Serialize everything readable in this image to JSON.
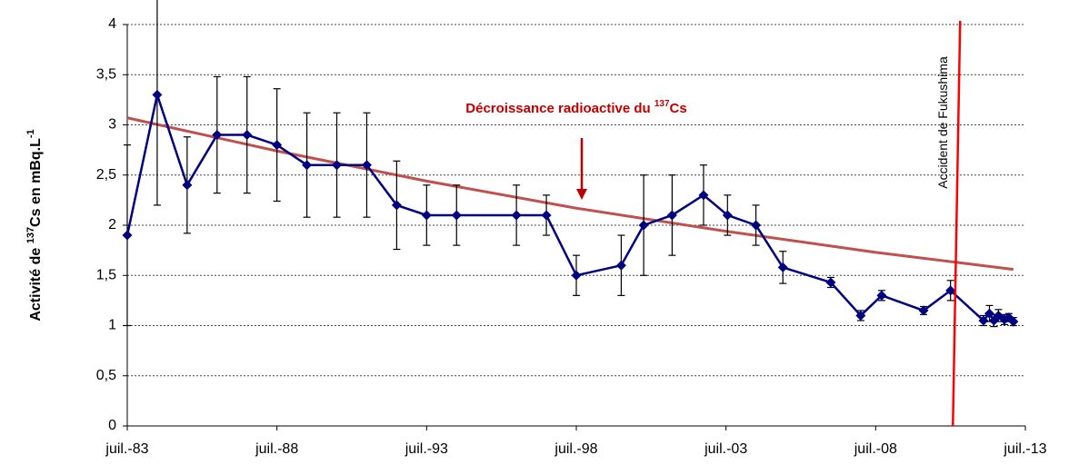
{
  "chart_data": {
    "type": "line",
    "y_label": {
      "pre": "Activité de ",
      "sup": "137",
      "mid": "Cs en mBq.L",
      "sup2": "-1"
    },
    "annotation": {
      "pre": "Décroissance radioactive du ",
      "sup": "137",
      "post": "Cs",
      "x": 1998.5
    },
    "event": {
      "text": "Accident de Fukushima",
      "x": 2011.2,
      "color": "#ff0000"
    },
    "xlim": [
      1983.5,
      2013.5
    ],
    "xticks": [
      {
        "value": 1983.5,
        "label": "juil.-83"
      },
      {
        "value": 1988.5,
        "label": "juil.-88"
      },
      {
        "value": 1993.5,
        "label": "juil.-93"
      },
      {
        "value": 1998.5,
        "label": "juil.-98"
      },
      {
        "value": 2003.5,
        "label": "juil.-03"
      },
      {
        "value": 2008.5,
        "label": "juil.-08"
      },
      {
        "value": 2013.5,
        "label": "juil.-13"
      }
    ],
    "ylim": [
      0,
      4
    ],
    "yticks": [
      0,
      {
        "value": 0.5,
        "label": "0,5"
      },
      1,
      {
        "value": 1.5,
        "label": "1,5"
      },
      2,
      {
        "value": 2.5,
        "label": "2,5"
      },
      3,
      {
        "value": 3.5,
        "label": "3,5"
      },
      4
    ],
    "grid": true,
    "x": [
      1983.5,
      1984.5,
      1985.5,
      1986.5,
      1987.5,
      1988.5,
      1989.5,
      1990.5,
      1991.5,
      1992.5,
      1993.5,
      1994.5,
      1996.5,
      1997.5,
      1998.5,
      2000.0,
      2000.75,
      2001.7,
      2002.75,
      2003.55,
      2004.5,
      2005.4,
      2007.0,
      2008.0,
      2008.7,
      2010.1,
      2011.0,
      2012.1,
      2012.3,
      2012.45,
      2012.6,
      2012.8,
      2012.95,
      2013.1
    ],
    "series": [
      {
        "color": "#000080",
        "values": [
          1.9,
          3.3,
          2.4,
          2.9,
          2.9,
          2.8,
          2.6,
          2.6,
          2.6,
          2.2,
          2.1,
          2.1,
          2.1,
          2.1,
          1.5,
          1.6,
          2.0,
          2.1,
          2.3,
          2.1,
          2.0,
          1.58,
          1.43,
          1.1,
          1.3,
          1.15,
          1.35,
          1.05,
          1.12,
          1.05,
          1.1,
          1.06,
          1.08,
          1.04
        ],
        "errors": [
          0.9,
          1.1,
          0.48,
          0.58,
          0.58,
          0.56,
          0.52,
          0.52,
          0.52,
          0.44,
          0.3,
          0.3,
          0.3,
          0.2,
          0.2,
          0.3,
          0.5,
          0.4,
          0.3,
          0.2,
          0.2,
          0.16,
          0.05,
          0.05,
          0.05,
          0.04,
          0.1,
          0.05,
          0.08,
          0.06,
          0.06,
          0.05,
          0.04,
          0.04
        ]
      },
      {
        "color": "#c0504d",
        "x": [
          1983.5,
          1988.5,
          1993.5,
          1998.5,
          2003.5,
          2008.5,
          2013.1
        ],
        "values": [
          3.07,
          2.74,
          2.44,
          2.17,
          1.94,
          1.73,
          1.56
        ]
      }
    ]
  }
}
